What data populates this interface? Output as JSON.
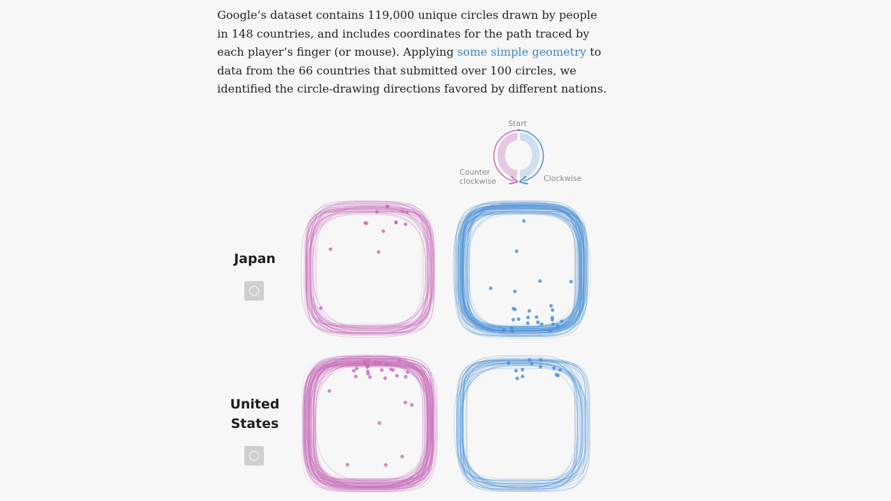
{
  "intro": {
    "text_before_link": "Google’s dataset contains 119,000 unique circles drawn by people in 148 countries, and includes coordinates for the path traced by each player’s finger (or mouse). Applying ",
    "link_text": "some simple geometry",
    "text_after_link": " to data from the 66 countries that submitted over 100 circles, we identified the circle-drawing directions favored by different nations."
  },
  "legend": {
    "start_label": "Start",
    "counter_label_line1": "Counter",
    "counter_label_line2": "clockwise",
    "clockwise_label": "Clockwise"
  },
  "colors": {
    "counterclockwise": "#c56ab8",
    "clockwise": "#4a8fd6",
    "background": "#f7f7f7"
  },
  "countries": [
    {
      "name": "Japan",
      "play_icon": "circle-play-icon",
      "counterclockwise_density": 0.28,
      "clockwise_density": 0.72
    },
    {
      "name_line1": "United",
      "name_line2": "States",
      "play_icon": "circle-play-icon",
      "counterclockwise_density": 0.78,
      "clockwise_density": 0.22
    }
  ]
}
